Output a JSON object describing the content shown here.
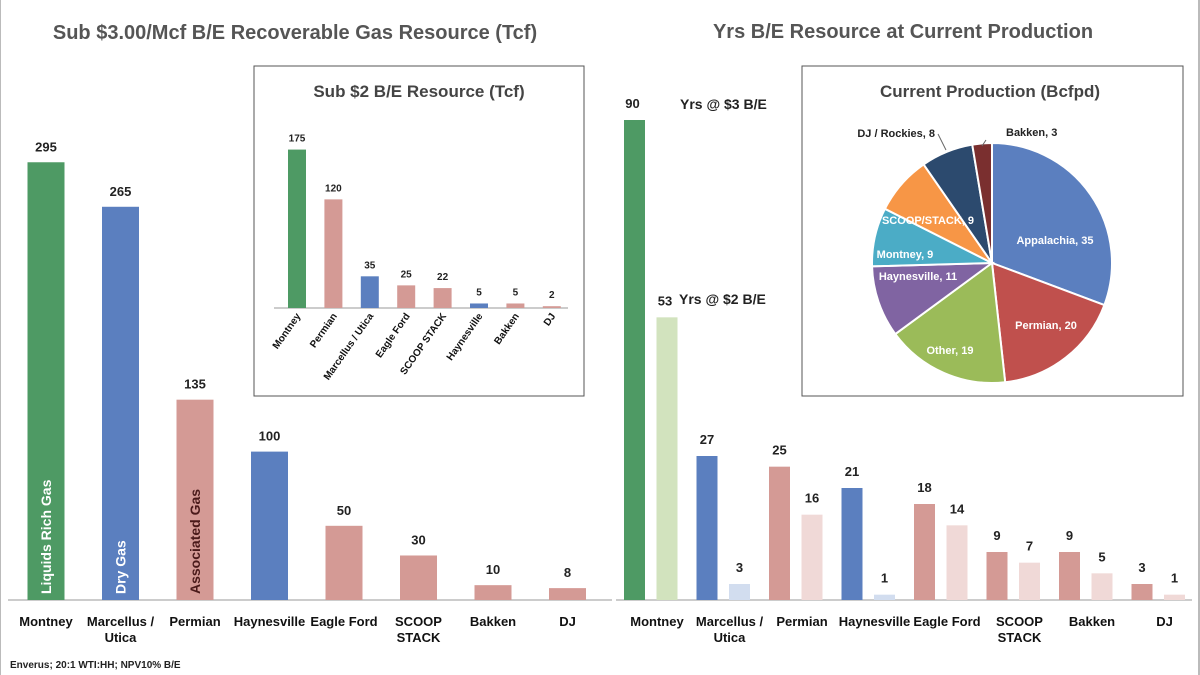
{
  "source_note": "Enverus; 20:1 WTI:HH; NPV10% B/E",
  "colors": {
    "green": "#4e9a64",
    "blue": "#5b7fbf",
    "pink": "#d49a95",
    "light_green": "#d2e3be",
    "light_blue": "#d2ddef",
    "light_pink": "#f0d9d7",
    "axis": "#999999"
  },
  "chart_data": [
    {
      "id": "left_main",
      "type": "bar",
      "title": "Sub $3.00/Mcf B/E Recoverable Gas Resource (Tcf)",
      "categories": [
        "Montney",
        "Marcellus / Utica",
        "Permian",
        "Haynesville",
        "Eagle Ford",
        "SCOOP STACK",
        "Bakken",
        "DJ"
      ],
      "category_lines": [
        [
          "Montney"
        ],
        [
          "Marcellus /",
          "Utica"
        ],
        [
          "Permian"
        ],
        [
          "Haynesville"
        ],
        [
          "Eagle Ford"
        ],
        [
          "SCOOP",
          "STACK"
        ],
        [
          "Bakken"
        ],
        [
          "DJ"
        ]
      ],
      "values": [
        295,
        265,
        135,
        100,
        50,
        30,
        10,
        8
      ],
      "bar_colors": [
        "green",
        "blue",
        "pink",
        "blue",
        "pink",
        "pink",
        "pink",
        "pink"
      ],
      "in_bar_labels": [
        "Liquids Rich Gas",
        "Dry Gas",
        "Associated Gas",
        "",
        "",
        "",
        "",
        ""
      ],
      "ylim": [
        0,
        310
      ]
    },
    {
      "id": "left_inset",
      "type": "bar",
      "title": "Sub $2 B/E Resource (Tcf)",
      "categories": [
        "Montney",
        "Permian",
        "Marcellus / Utica",
        "Eagle Ford",
        "SCOOP STACK",
        "Haynesville",
        "Bakken",
        "DJ"
      ],
      "values": [
        175,
        120,
        35,
        25,
        22,
        5,
        5,
        2
      ],
      "bar_colors": [
        "green",
        "pink",
        "blue",
        "pink",
        "pink",
        "blue",
        "pink",
        "pink"
      ],
      "ylim": [
        0,
        190
      ]
    },
    {
      "id": "right_main",
      "type": "bar",
      "title": "Yrs B/E Resource at Current Production",
      "categories": [
        "Montney",
        "Marcellus / Utica",
        "Permian",
        "Haynesville",
        "Eagle Ford",
        "SCOOP STACK",
        "Bakken",
        "DJ"
      ],
      "category_lines": [
        [
          "Montney"
        ],
        [
          "Marcellus /",
          "Utica"
        ],
        [
          "Permian"
        ],
        [
          "Haynesville"
        ],
        [
          "Eagle Ford"
        ],
        [
          "SCOOP",
          "STACK"
        ],
        [
          "Bakken"
        ],
        [
          "DJ"
        ]
      ],
      "series": [
        {
          "name": "Yrs @ $3 B/E",
          "values": [
            90,
            27,
            25,
            21,
            18,
            9,
            9,
            3
          ],
          "colors": [
            "green",
            "blue",
            "pink",
            "blue",
            "pink",
            "pink",
            "pink",
            "pink"
          ]
        },
        {
          "name": "Yrs @ $2 B/E",
          "values": [
            53,
            3,
            16,
            1,
            14,
            7,
            5,
            1
          ],
          "colors": [
            "light_green",
            "light_blue",
            "light_pink",
            "light_blue",
            "light_pink",
            "light_pink",
            "light_pink",
            "light_pink"
          ]
        }
      ],
      "annotations": [
        "Yrs @ $3 B/E",
        "Yrs @ $2 B/E"
      ],
      "ylim": [
        0,
        92
      ]
    },
    {
      "id": "right_inset_pie",
      "type": "pie",
      "title": "Current Production (Bcfpd)",
      "slices": [
        {
          "label": "Appalachia",
          "value": 35,
          "color": "#5b7fbf",
          "text": "Appalachia, 35"
        },
        {
          "label": "Permian",
          "value": 20,
          "color": "#c0504d",
          "text": "Permian, 20"
        },
        {
          "label": "Other",
          "value": 19,
          "color": "#9bbb59",
          "text": "Other, 19"
        },
        {
          "label": "Haynesville",
          "value": 11,
          "color": "#8064a2",
          "text": "Haynesville, 11"
        },
        {
          "label": "Montney",
          "value": 9,
          "color": "#4bacc6",
          "text": "Montney, 9"
        },
        {
          "label": "SCOOP/STACK",
          "value": 9,
          "color": "#f79646",
          "text": "SCOOP/STACK, 9"
        },
        {
          "label": "DJ / Rockies",
          "value": 8,
          "color": "#2c4a6e",
          "text": "DJ / Rockies, 8"
        },
        {
          "label": "Bakken",
          "value": 3,
          "color": "#7a2f2f",
          "text": "Bakken, 3"
        }
      ]
    }
  ]
}
